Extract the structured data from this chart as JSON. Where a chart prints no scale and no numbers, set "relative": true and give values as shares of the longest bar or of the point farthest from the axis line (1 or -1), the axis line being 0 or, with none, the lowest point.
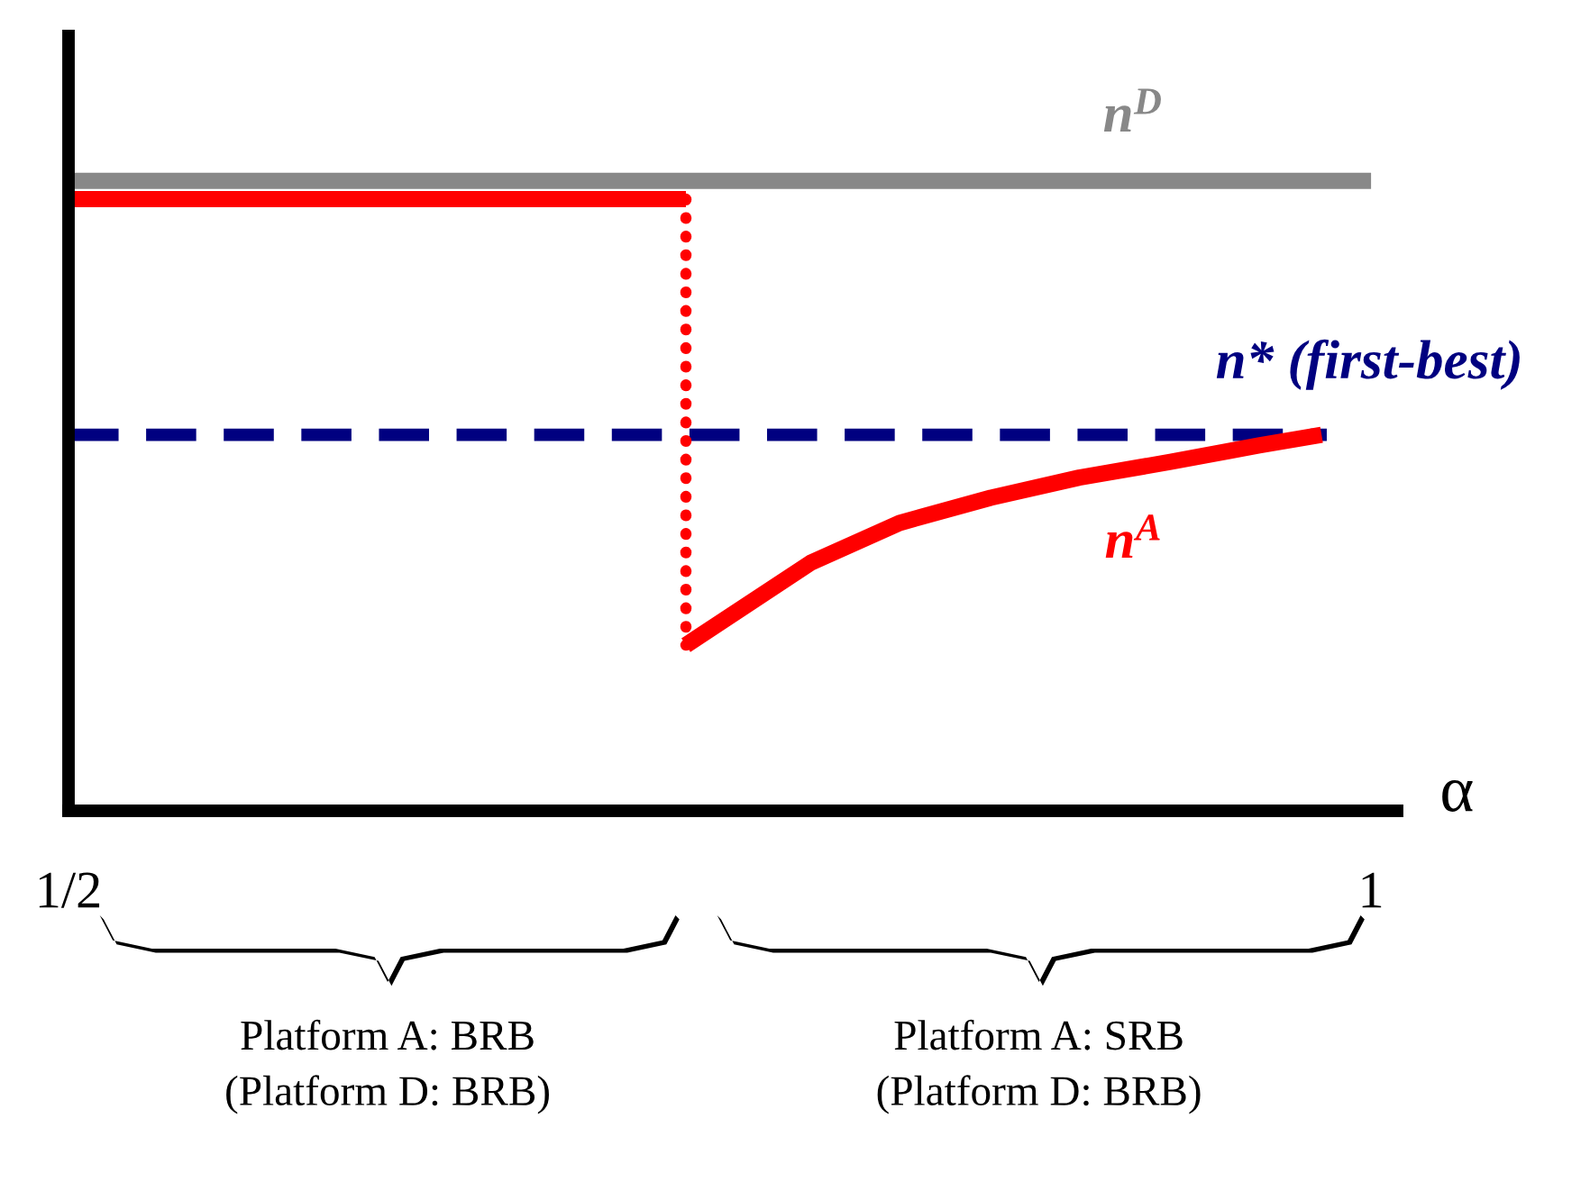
{
  "chart_data": {
    "type": "line",
    "relative": true,
    "xlabel": "α",
    "xlim": [
      0.5,
      1.01
    ],
    "xticks": [
      {
        "value": 0.5,
        "label": "1/2"
      },
      1
    ],
    "legend": false,
    "grid": false,
    "annotations": [
      "Platform A: BRB\n(Platform D: BRB)",
      "Platform A: SRB\n(Platform D: BRB)"
    ],
    "series": [
      {
        "name": "n$^{D}$",
        "color": "#888888",
        "x": [
          0.5,
          1.0
        ],
        "values": [
          1,
          1
        ]
      },
      {
        "name": "n* (first-best)",
        "color": "#000080",
        "line_style": "dashed",
        "x": [
          0.5,
          0.983
        ],
        "values": [
          0.597,
          0.597
        ]
      },
      {
        "color": "#ff0000",
        "x": [
          0.5,
          0.737
        ],
        "values": [
          0.971,
          0.971
        ]
      },
      {
        "color": "#ff0000",
        "line_style": "dotted",
        "x": [
          0.737,
          0.737
        ],
        "values": [
          0.971,
          0.263
        ]
      },
      {
        "name": "n$^{A}$",
        "color": "#ff0000",
        "x": [
          0.737,
          0.785,
          0.819,
          0.854,
          0.888,
          0.923,
          0.957,
          0.981
        ],
        "values": [
          0.263,
          0.394,
          0.457,
          0.497,
          0.529,
          0.554,
          0.58,
          0.597
        ]
      }
    ]
  }
}
